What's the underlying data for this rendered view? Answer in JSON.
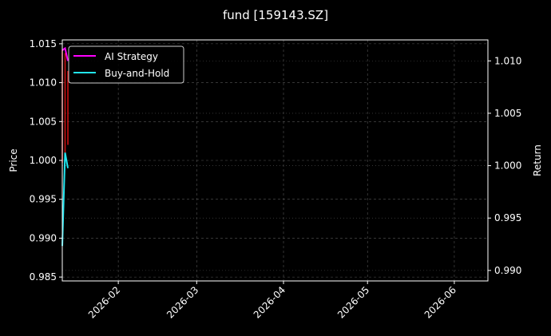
{
  "chart_data": {
    "type": "line",
    "title": "fund [159143.SZ]",
    "ylabel_left": "Price",
    "ylabel_right": "Return",
    "xlim": [
      "2026-01-12",
      "2026-06-13"
    ],
    "ylim_left": [
      0.9845,
      1.0155
    ],
    "ylim_right": [
      0.989,
      1.012
    ],
    "x_ticks": [
      "2026-02",
      "2026-03",
      "2026-04",
      "2026-05",
      "2026-06"
    ],
    "y_ticks_left": [
      "0.985",
      "0.990",
      "0.995",
      "1.000",
      "1.005",
      "1.010",
      "1.015"
    ],
    "y_ticks_right": [
      "0.990",
      "0.995",
      "1.000",
      "1.005",
      "1.010"
    ],
    "grid": true,
    "legend_position": "top-left",
    "price_candles": [
      {
        "date": "2026-01-12",
        "low": 0.9997,
        "high": 1.0142
      },
      {
        "date": "2026-01-13",
        "low": 1.0005,
        "high": 1.0138
      },
      {
        "date": "2026-01-14",
        "low": 1.002,
        "high": 1.0115
      }
    ],
    "series": [
      {
        "name": "AI Strategy",
        "color": "#ff00ff",
        "x": [
          "2026-01-12",
          "2026-01-13",
          "2026-01-14"
        ],
        "y": [
          1.011,
          1.0112,
          1.01
        ]
      },
      {
        "name": "Buy-and-Hold",
        "color": "#22e6f0",
        "x": [
          "2026-01-12",
          "2026-01-13",
          "2026-01-14"
        ],
        "y": [
          0.989,
          1.001,
          0.999
        ]
      }
    ],
    "colors": {
      "background": "#000000",
      "candle": "#cc1111",
      "grid": "#555555",
      "text": "#ffffff"
    }
  }
}
